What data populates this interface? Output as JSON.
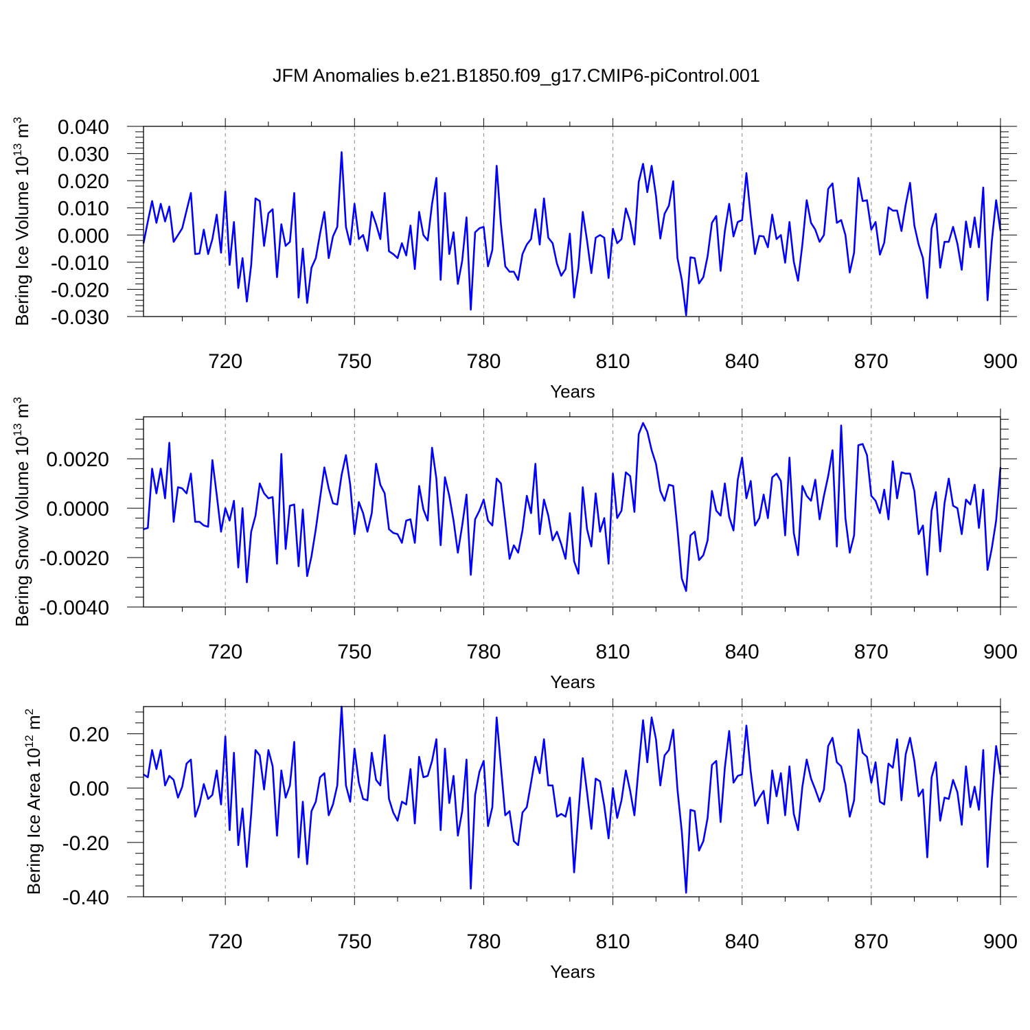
{
  "figure": {
    "title": "JFM Anomalies b.e21.B1850.f09_g17.CMIP6-piControl.001"
  },
  "chart_data": [
    {
      "type": "line",
      "ylabel": "Bering Ice Volume 10",
      "ylabel_exp": "13",
      "ylabel_unit": " m",
      "ylabel_unit_exp": "3",
      "xlabel": "Years",
      "xlim": [
        701,
        900
      ],
      "ylim": [
        -0.03,
        0.04
      ],
      "yticks": [
        -0.03,
        -0.02,
        -0.01,
        0.0,
        0.01,
        0.02,
        0.03,
        0.04
      ],
      "ytick_labels": [
        "-0.030",
        "-0.020",
        "-0.010",
        "0.000",
        "0.010",
        "0.020",
        "0.030",
        "0.040"
      ],
      "xticks": [
        720,
        750,
        780,
        810,
        840,
        870,
        900
      ],
      "xtick_labels": [
        "720",
        "750",
        "780",
        "810",
        "840",
        "870",
        "900"
      ],
      "line_color": "#0000ff",
      "x_start": 701,
      "values": [
        -0.003,
        0.005,
        0.0125,
        0.0045,
        0.0115,
        0.005,
        0.0105,
        -0.0025,
        0.0,
        0.0025,
        0.009,
        0.0155,
        -0.007,
        -0.0068,
        0.002,
        -0.007,
        -0.0015,
        0.0075,
        -0.0065,
        0.016,
        -0.011,
        0.0048,
        -0.0195,
        -0.0085,
        -0.0245,
        -0.011,
        0.0135,
        0.0125,
        -0.004,
        0.008,
        0.0095,
        -0.0155,
        0.004,
        -0.004,
        -0.0025,
        0.0155,
        -0.023,
        -0.005,
        -0.025,
        -0.012,
        -0.0085,
        0.0005,
        0.0085,
        -0.0085,
        -0.0005,
        0.003,
        0.0305,
        0.003,
        -0.0035,
        0.0115,
        -0.0015,
        0.0,
        -0.0058,
        0.0085,
        0.004,
        -0.0015,
        0.0155,
        -0.006,
        -0.007,
        -0.0085,
        -0.003,
        -0.0075,
        0.0035,
        -0.0125,
        0.0085,
        0.0,
        -0.002,
        0.0115,
        0.021,
        -0.0165,
        0.0155,
        -0.007,
        0.001,
        -0.018,
        -0.0095,
        0.0065,
        -0.0275,
        0.001,
        0.0025,
        0.003,
        -0.0115,
        -0.0055,
        0.0255,
        0.004,
        -0.0115,
        -0.0135,
        -0.0135,
        -0.0165,
        -0.007,
        -0.0035,
        -0.0015,
        0.0095,
        -0.0035,
        0.0135,
        -0.001,
        -0.003,
        -0.0105,
        -0.015,
        -0.0125,
        0.0005,
        -0.023,
        -0.012,
        0.0085,
        -0.002,
        -0.014,
        -0.001,
        0.0,
        -0.001,
        -0.0158,
        0.0023,
        -0.003,
        -0.0015,
        0.0098,
        0.005,
        -0.0035,
        0.0195,
        0.0262,
        0.0158,
        0.0255,
        0.0145,
        -0.0013,
        0.0078,
        0.0108,
        0.0198,
        -0.0085,
        -0.0165,
        -0.0295,
        -0.0082,
        -0.0085,
        -0.0178,
        -0.0155,
        -0.0078,
        0.0045,
        0.007,
        -0.0132,
        0.0015,
        0.0115,
        -0.0005,
        0.0048,
        0.0055,
        0.0228,
        0.007,
        -0.007,
        -0.0003,
        -0.0005,
        -0.0045,
        0.0075,
        -0.0015,
        0.0,
        -0.0102,
        0.0048,
        -0.0098,
        -0.0168,
        -0.0035,
        0.0128,
        0.0045,
        0.002,
        -0.0025,
        0.0,
        0.017,
        0.019,
        0.0045,
        0.0055,
        0.0,
        -0.0138,
        -0.0065,
        0.021,
        0.0125,
        0.0128,
        0.002,
        0.0048,
        -0.0072,
        -0.0028,
        0.0102,
        0.009,
        0.009,
        0.0015,
        0.0112,
        0.0192,
        0.0035,
        -0.0035,
        -0.0085,
        -0.0232,
        0.0025,
        0.0078,
        -0.012,
        -0.0025,
        -0.0025,
        0.003,
        -0.0032,
        -0.0128,
        0.005,
        -0.0045,
        0.0065,
        -0.0045,
        0.0175,
        -0.024,
        -0.002,
        0.0128,
        0.0015
      ]
    },
    {
      "type": "line",
      "ylabel": "Bering Snow Volume 10",
      "ylabel_exp": "13",
      "ylabel_unit": " m",
      "ylabel_unit_exp": "3",
      "xlabel": "Years",
      "xlim": [
        701,
        900
      ],
      "ylim": [
        -0.004,
        0.0037
      ],
      "yticks": [
        -0.004,
        -0.002,
        0.0,
        0.002
      ],
      "ytick_labels": [
        "-0.0040",
        "-0.0020",
        "0.0000",
        "0.0020"
      ],
      "xticks": [
        720,
        750,
        780,
        810,
        840,
        870,
        900
      ],
      "xtick_labels": [
        "720",
        "750",
        "780",
        "810",
        "840",
        "870",
        "900"
      ],
      "line_color": "#0000ff",
      "x_start": 701,
      "values": [
        -0.00085,
        -0.0008,
        0.0016,
        0.0006,
        0.0016,
        0.0004,
        0.00265,
        -0.00055,
        0.00085,
        0.0008,
        0.0006,
        0.0014,
        -0.00055,
        -0.00055,
        -0.0007,
        -0.00075,
        0.00195,
        0.00055,
        -0.00095,
        0.0,
        -0.0005,
        0.0003,
        -0.0024,
        0.0,
        -0.003,
        -0.00095,
        -0.0003,
        0.001,
        0.0006,
        0.0004,
        0.00045,
        -0.00225,
        0.0022,
        -0.00165,
        0.0001,
        0.00015,
        -0.00235,
        -5e-05,
        -0.00275,
        -0.00195,
        -0.00085,
        0.0004,
        0.00165,
        0.0008,
        0.0002,
        0.00015,
        0.00135,
        0.00215,
        0.00095,
        -0.00105,
        0.00025,
        -0.0002,
        -0.00095,
        -0.0002,
        0.0018,
        0.00095,
        0.0006,
        -0.00085,
        -0.001,
        -0.00105,
        -0.0014,
        -0.0005,
        -0.00045,
        -0.0014,
        0.0009,
        -5e-05,
        -0.0005,
        0.00245,
        0.0012,
        -0.0015,
        0.00125,
        0.0005,
        -0.0005,
        -0.0018,
        -0.0007,
        0.00055,
        -0.0027,
        -0.00045,
        -0.0001,
        0.00035,
        -0.0005,
        -0.0007,
        0.0012,
        0.001,
        -0.0005,
        -0.00205,
        -0.0015,
        -0.0018,
        -0.0009,
        0.0005,
        -0.0002,
        0.0018,
        -0.00105,
        0.00035,
        -0.0003,
        -0.0013,
        -0.00095,
        -0.00145,
        -0.00205,
        -0.0002,
        -0.00215,
        -0.00265,
        0.00085,
        -0.00085,
        -0.00155,
        0.0006,
        -0.00095,
        -0.0004,
        -0.00225,
        0.0014,
        -0.0004,
        -0.0001,
        0.00145,
        0.0013,
        -0.00015,
        0.003,
        0.00345,
        0.0031,
        0.00235,
        0.0018,
        0.0007,
        0.0003,
        0.00095,
        0.0009,
        -0.00085,
        -0.00285,
        -0.00335,
        -0.0011,
        -0.00095,
        -0.0021,
        -0.0019,
        -0.0013,
        0.0007,
        -0.0001,
        -0.0003,
        0.001,
        -0.00035,
        -0.0009,
        0.00115,
        0.00205,
        0.0004,
        0.0011,
        -0.0007,
        -0.0004,
        0.00055,
        -0.0004,
        0.00125,
        0.0014,
        0.0011,
        -0.0011,
        0.00205,
        -0.001,
        -0.0019,
        0.0009,
        0.0005,
        0.0003,
        0.00115,
        -0.00045,
        0.0005,
        0.0013,
        0.00235,
        -0.00155,
        0.00335,
        -0.0004,
        -0.0018,
        -0.0011,
        0.00255,
        0.0026,
        0.00215,
        0.0005,
        0.0003,
        -0.0002,
        0.00075,
        -0.00045,
        0.0019,
        0.0004,
        0.00145,
        0.0014,
        0.0014,
        0.0007,
        -0.00105,
        -0.0007,
        -0.0027,
        -0.0001,
        0.00065,
        -0.00175,
        0.0002,
        0.0012,
        0.0001,
        0.0,
        -0.00105,
        0.00035,
        0.00015,
        0.00095,
        -0.0008,
        0.00075,
        -0.0025,
        -0.0016,
        -0.0005,
        0.00165
      ]
    },
    {
      "type": "line",
      "ylabel": "Bering Ice Area 10",
      "ylabel_exp": "12",
      "ylabel_unit": " m",
      "ylabel_unit_exp": "2",
      "xlabel": "Years",
      "xlim": [
        701,
        900
      ],
      "ylim": [
        -0.4,
        0.3
      ],
      "yticks": [
        -0.4,
        -0.2,
        0.0,
        0.2
      ],
      "ytick_labels": [
        "-0.40",
        "-0.20",
        "0.00",
        "0.20"
      ],
      "xticks": [
        720,
        750,
        780,
        810,
        840,
        870,
        900
      ],
      "xtick_labels": [
        "720",
        "750",
        "780",
        "810",
        "840",
        "870",
        "900"
      ],
      "line_color": "#0000ff",
      "x_start": 701,
      "values": [
        0.05,
        0.04,
        0.14,
        0.07,
        0.14,
        0.01,
        0.045,
        0.03,
        -0.035,
        0.005,
        0.09,
        0.105,
        -0.105,
        -0.06,
        0.015,
        -0.04,
        -0.025,
        0.065,
        -0.06,
        0.19,
        -0.155,
        0.13,
        -0.21,
        -0.075,
        -0.29,
        -0.095,
        0.14,
        0.12,
        -0.005,
        0.14,
        0.08,
        -0.175,
        0.065,
        -0.035,
        0.01,
        0.17,
        -0.255,
        -0.05,
        -0.28,
        -0.085,
        -0.05,
        0.04,
        0.055,
        -0.1,
        -0.06,
        0.01,
        0.3,
        0.01,
        -0.05,
        0.145,
        0.02,
        -0.04,
        -0.045,
        0.13,
        0.03,
        0.01,
        0.195,
        -0.04,
        -0.09,
        -0.12,
        -0.05,
        -0.06,
        0.07,
        -0.13,
        0.115,
        0.04,
        0.045,
        0.1,
        0.18,
        -0.155,
        0.145,
        -0.055,
        0.045,
        -0.175,
        -0.085,
        0.105,
        -0.37,
        -0.025,
        0.06,
        0.1,
        -0.14,
        -0.07,
        0.26,
        0.08,
        -0.1,
        -0.085,
        -0.195,
        -0.21,
        -0.09,
        -0.07,
        0.02,
        0.115,
        0.055,
        0.18,
        0.01,
        0.01,
        -0.105,
        -0.095,
        -0.105,
        -0.035,
        -0.31,
        -0.09,
        0.11,
        -0.015,
        -0.15,
        0.035,
        0.025,
        -0.065,
        -0.185,
        0.0,
        -0.11,
        -0.045,
        0.065,
        -0.01,
        -0.1,
        0.08,
        0.25,
        0.095,
        0.26,
        0.18,
        0.01,
        0.12,
        0.14,
        0.215,
        -0.005,
        -0.16,
        -0.385,
        -0.08,
        -0.085,
        -0.23,
        -0.195,
        -0.11,
        0.085,
        0.1,
        -0.125,
        0.075,
        0.21,
        0.02,
        0.045,
        0.05,
        0.23,
        0.06,
        -0.065,
        -0.035,
        -0.01,
        -0.13,
        0.065,
        -0.03,
        0.055,
        -0.1,
        0.08,
        -0.095,
        -0.155,
        0.005,
        0.105,
        0.035,
        -0.005,
        -0.05,
        -0.005,
        0.155,
        0.185,
        0.095,
        0.08,
        0.015,
        -0.105,
        -0.045,
        0.215,
        0.13,
        0.115,
        0.02,
        0.095,
        -0.05,
        -0.06,
        0.09,
        0.075,
        0.18,
        -0.045,
        0.125,
        0.185,
        0.1,
        -0.03,
        -0.005,
        -0.255,
        0.04,
        0.095,
        -0.12,
        -0.035,
        -0.04,
        0.03,
        -0.015,
        -0.135,
        0.08,
        -0.07,
        0.005,
        -0.08,
        0.14,
        -0.29,
        -0.04,
        0.155,
        0.05
      ]
    }
  ]
}
